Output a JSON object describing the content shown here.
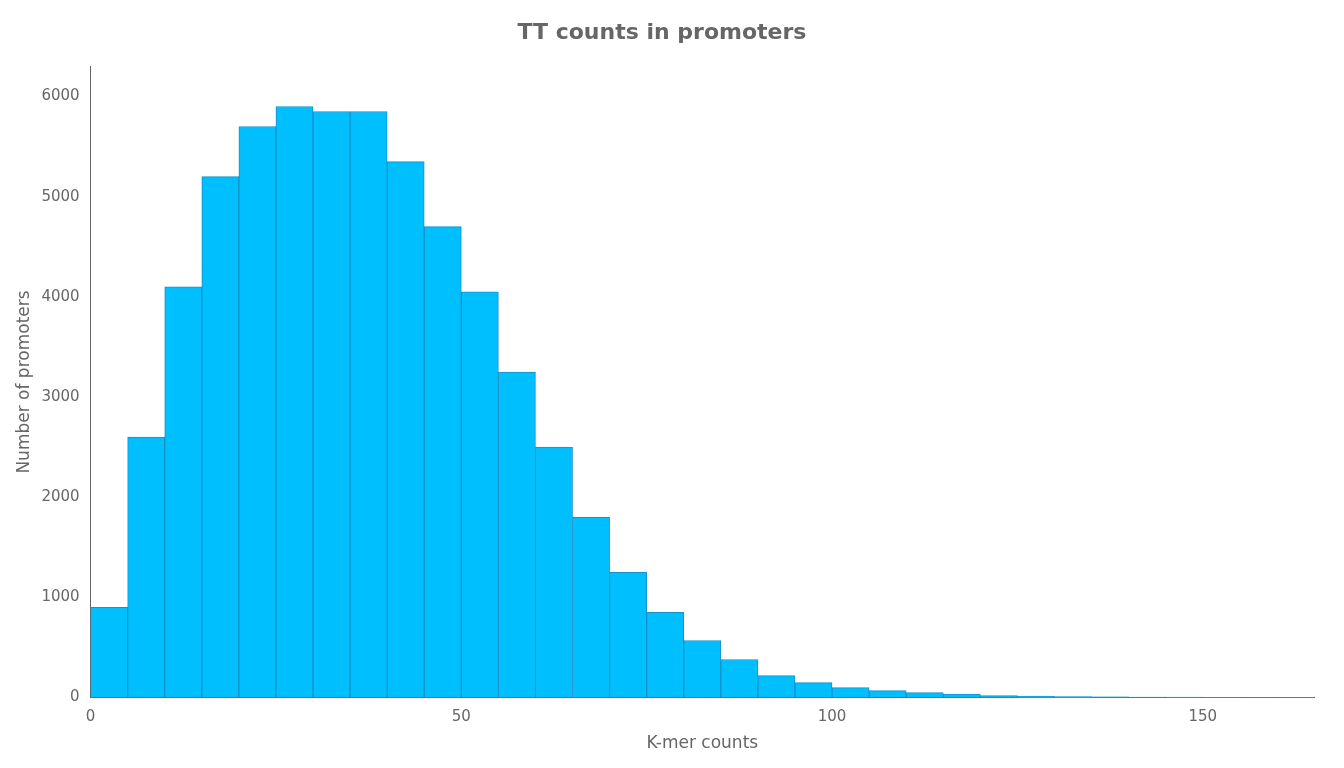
{
  "chart_data": {
    "type": "histogram",
    "title": "TT counts in promoters",
    "xlabel": "K-mer counts",
    "ylabel": "Number of promoters",
    "bins": [
      0,
      5,
      10,
      15,
      20,
      25,
      30,
      35,
      40,
      45,
      50,
      55,
      60,
      65,
      70,
      75,
      80,
      85,
      90,
      95,
      100,
      105,
      110,
      115,
      120,
      125,
      130,
      135,
      140,
      145,
      150,
      155,
      160,
      165
    ],
    "values": [
      900,
      2600,
      4100,
      5200,
      5700,
      5900,
      5850,
      5850,
      5350,
      4700,
      4050,
      3250,
      2500,
      1800,
      1250,
      850,
      570,
      380,
      220,
      150,
      100,
      70,
      50,
      35,
      20,
      15,
      10,
      8,
      5,
      4,
      2,
      1,
      1
    ],
    "color": "#00BFFF",
    "xlim": [
      0,
      165
    ],
    "ylim": [
      0,
      6300
    ],
    "xticks": [
      0,
      50,
      100,
      150
    ],
    "yticks": [
      0,
      1000,
      2000,
      3000,
      4000,
      5000,
      6000
    ],
    "grid": false
  }
}
